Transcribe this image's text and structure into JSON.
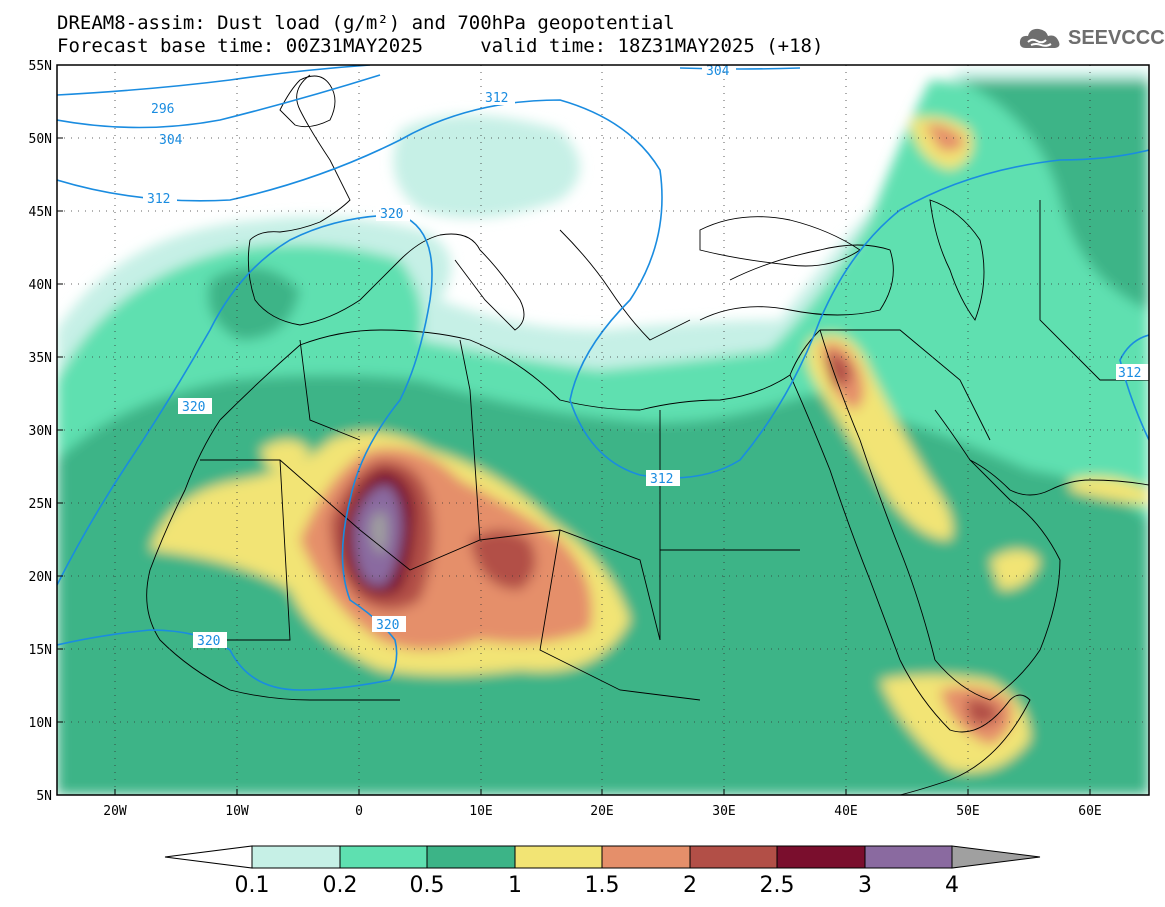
{
  "header": {
    "title_line1": "DREAM8-assim: Dust load (g/m²) and 700hPa geopotential",
    "title_line2": "Forecast base time: 00Z31MAY2025     valid time: 18Z31MAY2025 (+18)"
  },
  "logo": {
    "text": "SEEVCCC",
    "icon": "cloud-icon"
  },
  "axes": {
    "lat_labels": [
      "55N",
      "50N",
      "45N",
      "40N",
      "35N",
      "30N",
      "25N",
      "20N",
      "15N",
      "10N",
      "5N"
    ],
    "lon_labels": [
      "20W",
      "10W",
      "0",
      "10E",
      "20E",
      "30E",
      "40E",
      "50E",
      "60E"
    ]
  },
  "geopotential_labels": [
    "296",
    "304",
    "312",
    "320",
    "312",
    "304",
    "312",
    "320",
    "320",
    "312"
  ],
  "legend": {
    "values": [
      "0.1",
      "0.2",
      "0.5",
      "1",
      "1.5",
      "2",
      "2.5",
      "3",
      "4"
    ],
    "colors": [
      "#c6f0e6",
      "#5ee0b0",
      "#3cb487",
      "#f2e474",
      "#e58f6a",
      "#b24f47",
      "#7a0e2d",
      "#8a6aa0",
      "#a0a0a0"
    ]
  },
  "colors": {
    "water_contour": "#1a8ce0",
    "level_0_1": "#c6f0e6",
    "level_0_2": "#5ee0b0",
    "level_0_5": "#3cb487",
    "level_1": "#f2e474",
    "level_1_5": "#e58f6a",
    "level_2": "#b24f47",
    "level_2_5": "#7a0e2d",
    "level_3": "#8a6aa0",
    "level_4": "#a0a0a0"
  }
}
